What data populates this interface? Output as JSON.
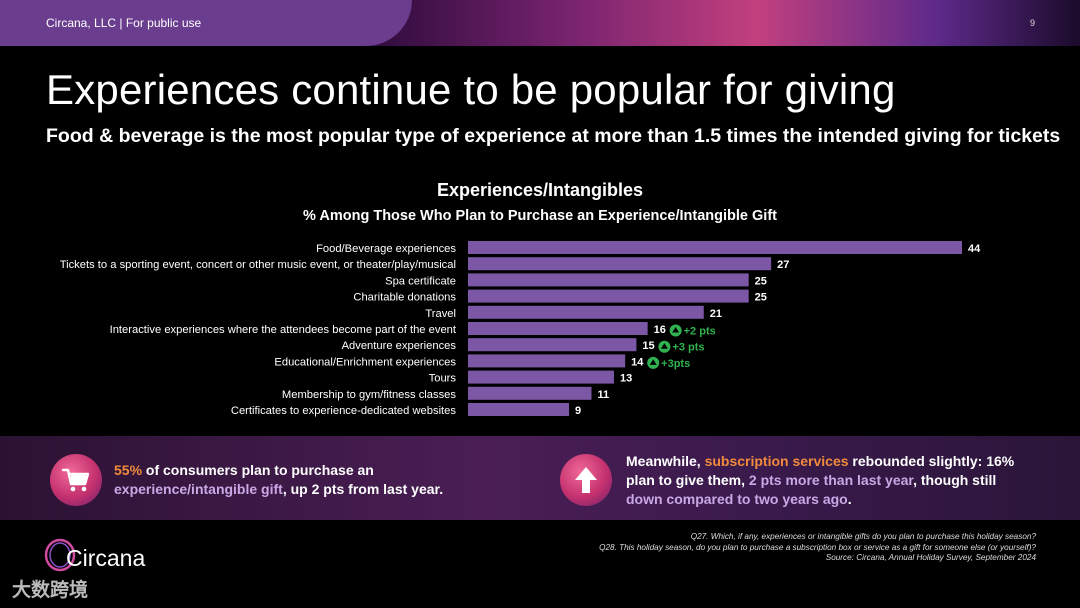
{
  "header": {
    "company": "Circana, LLC",
    "usage": "For public use",
    "page_number": "9"
  },
  "title": "Experiences continue to be popular for giving",
  "subtitle": "Food & beverage is the most popular type of experience at more than 1.5 times the intended giving for tickets",
  "chart_data": {
    "type": "bar",
    "orientation": "horizontal",
    "title": "Experiences/Intangibles",
    "subtitle": "% Among Those Who Plan to Purchase an Experience/Intangible Gift",
    "categories": [
      "Food/Beverage experiences",
      "Tickets to a sporting event, concert or other music event, or theater/play/musical",
      "Spa certificate",
      "Charitable donations",
      "Travel",
      "Interactive experiences where the attendees become part of the event",
      "Adventure experiences",
      "Educational/Enrichment experiences",
      "Tours",
      "Membership to gym/fitness classes",
      "Certificates to experience-dedicated websites"
    ],
    "values": [
      44,
      27,
      25,
      25,
      21,
      16,
      15,
      14,
      13,
      11,
      9
    ],
    "xlim": [
      0,
      44
    ],
    "bar_color": "#7b57a6",
    "annotations": [
      {
        "category_index": 5,
        "text": "+2 pts"
      },
      {
        "category_index": 6,
        "text": "+3 pts"
      },
      {
        "category_index": 7,
        "text": "+3pts"
      }
    ],
    "annotation_color": "#2fb24f"
  },
  "callouts": {
    "left": {
      "pct": "55%",
      "text1": " of consumers plan to purchase an ",
      "highlight": "experience/intangible gift",
      "text2": ", up 2 pts from last year."
    },
    "right": {
      "text1": "Meanwhile, ",
      "highlight1": "subscription services",
      "text2": " rebounded slightly: 16% plan to give them, ",
      "highlight2": "2 pts more than last year",
      "text3": ", though still ",
      "highlight3": "down compared to two years ago",
      "text4": "."
    }
  },
  "footnotes": [
    "Q27. Which, if any, experiences or intangible gifts do you plan to purchase this holiday season?",
    "Q28. This holiday season, do you plan to purchase a subscription box or service as a gift for someone else (or yourself)?",
    "Source: Circana, Annual Holiday Survey, September 2024"
  ],
  "logo_text": "Circana",
  "watermark": "大数跨境",
  "colors": {
    "accent_purple": "#6a3d8e",
    "orange": "#f08a3c",
    "lilac": "#c9a8e6",
    "green": "#2fb24f"
  },
  "icons": {
    "left_callout": "shopping-cart-icon",
    "right_callout": "arrow-up-icon",
    "annotation": "up-arrow-circle-icon"
  }
}
